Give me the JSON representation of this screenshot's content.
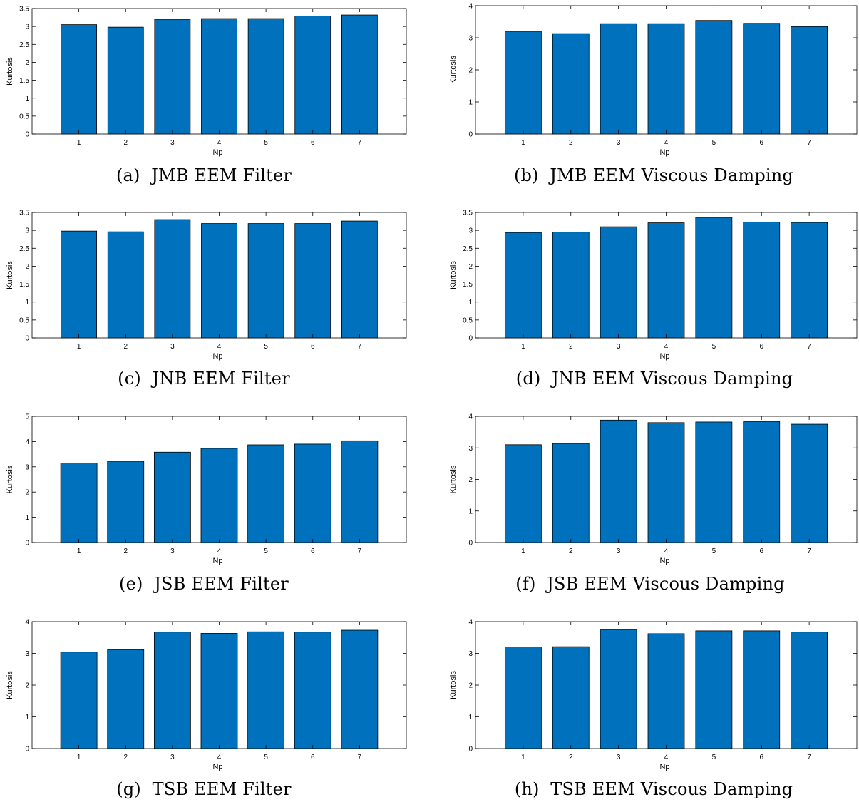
{
  "chart_data": [
    {
      "type": "bar",
      "caption": "(a)  JMB EEM Filter",
      "categories": [
        "1",
        "2",
        "3",
        "4",
        "5",
        "6",
        "7"
      ],
      "values": [
        3.05,
        2.98,
        3.2,
        3.22,
        3.22,
        3.29,
        3.32
      ],
      "xlabel": "Np",
      "ylabel": "Kurtosis",
      "ylim": [
        0,
        3.5
      ],
      "yticks": [
        "0",
        "0.5",
        "1",
        "1.5",
        "2",
        "2.5",
        "3",
        "3.5"
      ],
      "bar_color": "#0072BD"
    },
    {
      "type": "bar",
      "caption": "(b)  JMB EEM Viscous Damping",
      "categories": [
        "1",
        "2",
        "3",
        "4",
        "5",
        "6",
        "7"
      ],
      "values": [
        3.2,
        3.13,
        3.44,
        3.44,
        3.54,
        3.45,
        3.35
      ],
      "xlabel": "Np",
      "ylabel": "Kurtosis",
      "ylim": [
        0,
        4
      ],
      "yticks": [
        "0",
        "1",
        "2",
        "3",
        "4"
      ],
      "bar_color": "#0072BD"
    },
    {
      "type": "bar",
      "caption": "(c)  JNB EEM Filter",
      "categories": [
        "1",
        "2",
        "3",
        "4",
        "5",
        "6",
        "7"
      ],
      "values": [
        2.98,
        2.96,
        3.3,
        3.19,
        3.19,
        3.19,
        3.26
      ],
      "xlabel": "Np",
      "ylabel": "Kurtosis",
      "ylim": [
        0,
        3.5
      ],
      "yticks": [
        "0",
        "0.5",
        "1",
        "1.5",
        "2",
        "2.5",
        "3",
        "3.5"
      ],
      "bar_color": "#0072BD"
    },
    {
      "type": "bar",
      "caption": "(d)  JNB EEM Viscous Damping",
      "categories": [
        "1",
        "2",
        "3",
        "4",
        "5",
        "6",
        "7"
      ],
      "values": [
        2.94,
        2.95,
        3.1,
        3.21,
        3.36,
        3.23,
        3.22
      ],
      "xlabel": "Np",
      "ylabel": "Kurtosis",
      "ylim": [
        0,
        3.5
      ],
      "yticks": [
        "0",
        "0.5",
        "1",
        "1.5",
        "2",
        "2.5",
        "3",
        "3.5"
      ],
      "bar_color": "#0072BD"
    },
    {
      "type": "bar",
      "caption": "(e)  JSB EEM Filter",
      "categories": [
        "1",
        "2",
        "3",
        "4",
        "5",
        "6",
        "7"
      ],
      "values": [
        3.15,
        3.22,
        3.58,
        3.73,
        3.87,
        3.9,
        4.03
      ],
      "xlabel": "Np",
      "ylabel": "Kurtosis",
      "ylim": [
        0,
        5
      ],
      "yticks": [
        "0",
        "1",
        "2",
        "3",
        "4",
        "5"
      ],
      "bar_color": "#0072BD"
    },
    {
      "type": "bar",
      "caption": "(f)  JSB EEM Viscous Damping",
      "categories": [
        "1",
        "2",
        "3",
        "4",
        "5",
        "6",
        "7"
      ],
      "values": [
        3.1,
        3.14,
        3.88,
        3.8,
        3.82,
        3.83,
        3.75
      ],
      "xlabel": "Np",
      "ylabel": "Kurtosis",
      "ylim": [
        0,
        4
      ],
      "yticks": [
        "0",
        "1",
        "2",
        "3",
        "4"
      ],
      "bar_color": "#0072BD"
    },
    {
      "type": "bar",
      "caption": "(g)  TSB EEM Filter",
      "categories": [
        "1",
        "2",
        "3",
        "4",
        "5",
        "6",
        "7"
      ],
      "values": [
        3.04,
        3.12,
        3.67,
        3.63,
        3.68,
        3.67,
        3.73
      ],
      "xlabel": "Np",
      "ylabel": "Kurtosis",
      "ylim": [
        0,
        4
      ],
      "yticks": [
        "0",
        "1",
        "2",
        "3",
        "4"
      ],
      "bar_color": "#0072BD"
    },
    {
      "type": "bar",
      "caption": "(h)  TSB EEM Viscous Damping",
      "categories": [
        "1",
        "2",
        "3",
        "4",
        "5",
        "6",
        "7"
      ],
      "values": [
        3.2,
        3.21,
        3.74,
        3.62,
        3.71,
        3.71,
        3.67
      ],
      "xlabel": "Np",
      "ylabel": "Kurtosis",
      "ylim": [
        0,
        4
      ],
      "yticks": [
        "0",
        "1",
        "2",
        "3",
        "4"
      ],
      "bar_color": "#0072BD"
    }
  ]
}
